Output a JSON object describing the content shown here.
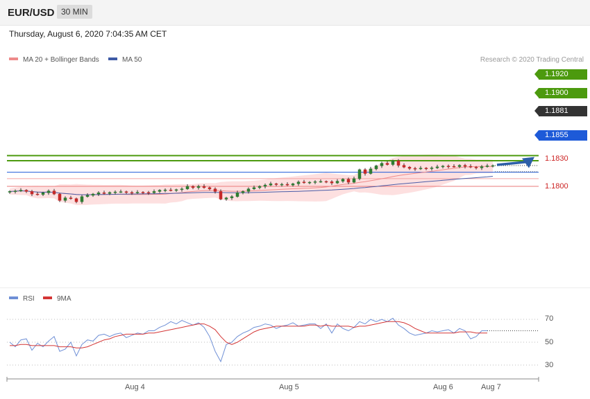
{
  "header": {
    "symbol": "EUR/USD",
    "timeframe": "30 MIN"
  },
  "date_line": "Thursday, August 6, 2020 7:04:35 AM CET",
  "legend": {
    "ma20": "MA 20 + Bollinger Bands",
    "ma50": "MA 50",
    "rsi": "RSI",
    "rsi_ma": "9MA"
  },
  "copyright": "Research © 2020 Trading Central",
  "colors": {
    "green": "#4c9a0e",
    "blue": "#1d5ad8",
    "red_line": "#e77b7b",
    "dark": "#333333",
    "candle_up": "#2e7d32",
    "candle_down": "#c62828",
    "band": "#fde0e0",
    "ma20": "#ee8a8a",
    "ma50": "#4a5da8",
    "rsi": "#6e8fd6",
    "rsi_ma": "#d43535",
    "arrow": "#2d5fa8"
  },
  "chart_data": [
    {
      "type": "candlestick",
      "ylim": [
        1.1747,
        1.1932
      ],
      "x_ticks": [
        "Aug 4",
        "Aug 5",
        "Aug 6",
        "Aug 7"
      ],
      "levels": [
        {
          "value": 1.192,
          "label": "1.1920",
          "style": "resistance"
        },
        {
          "value": 1.19,
          "label": "1.1900",
          "style": "resistance"
        },
        {
          "value": 1.1881,
          "label": "1.1881",
          "style": "last"
        },
        {
          "value": 1.1855,
          "label": "1.1855",
          "style": "support"
        },
        {
          "value": 1.183,
          "label": "1.1830",
          "style": "minor"
        },
        {
          "value": 1.18,
          "label": "1.1800",
          "style": "minor"
        }
      ],
      "closes": [
        1.178,
        1.1782,
        1.1785,
        1.178,
        1.177,
        1.1768,
        1.1775,
        1.1782,
        1.177,
        1.1745,
        1.1755,
        1.1752,
        1.174,
        1.176,
        1.1765,
        1.177,
        1.1775,
        1.1772,
        1.1776,
        1.1778,
        1.1779,
        1.1776,
        1.1775,
        1.1777,
        1.1776,
        1.1775,
        1.178,
        1.1785,
        1.1786,
        1.1784,
        1.1787,
        1.179,
        1.18,
        1.1795,
        1.18,
        1.1795,
        1.179,
        1.178,
        1.175,
        1.1755,
        1.176,
        1.1775,
        1.178,
        1.179,
        1.1795,
        1.18,
        1.1805,
        1.181,
        1.1807,
        1.1808,
        1.1805,
        1.181,
        1.1817,
        1.1814,
        1.1816,
        1.1818,
        1.1819,
        1.1818,
        1.1813,
        1.182,
        1.1828,
        1.1816,
        1.183,
        1.1865,
        1.185,
        1.1868,
        1.188,
        1.189,
        1.1885,
        1.19,
        1.1882,
        1.1875,
        1.187,
        1.1868,
        1.1871,
        1.1869,
        1.1872,
        1.1876,
        1.1879,
        1.1878,
        1.1877,
        1.1882,
        1.1878,
        1.1875,
        1.1872,
        1.1877,
        1.188,
        1.1881
      ],
      "projection": {
        "from": 1.1881,
        "to": 1.192
      }
    },
    {
      "type": "line",
      "title": "RSI",
      "ylim": [
        20,
        80
      ],
      "y_ticks": [
        30,
        50,
        70
      ],
      "rsi": [
        50,
        46,
        52,
        53,
        43,
        49,
        46,
        51,
        55,
        42,
        44,
        50,
        38,
        48,
        52,
        51,
        56,
        57,
        55,
        57,
        58,
        54,
        56,
        58,
        57,
        60,
        60,
        63,
        65,
        68,
        66,
        69,
        67,
        65,
        67,
        63,
        55,
        42,
        33,
        48,
        50,
        55,
        58,
        60,
        63,
        64,
        66,
        65,
        62,
        64,
        65,
        67,
        64,
        65,
        66,
        66,
        62,
        66,
        58,
        66,
        62,
        60,
        63,
        68,
        66,
        70,
        68,
        70,
        68,
        71,
        65,
        62,
        58,
        56,
        57,
        58,
        60,
        59,
        60,
        61,
        58,
        62,
        60,
        53,
        55,
        60,
        60
      ],
      "rsi_ma": [
        47,
        47,
        48,
        48,
        47,
        47,
        47,
        47,
        47,
        46,
        46,
        46,
        45,
        45,
        46,
        48,
        50,
        52,
        53,
        55,
        56,
        57,
        57,
        57,
        57,
        58,
        58,
        59,
        60,
        61,
        62,
        63,
        64,
        65,
        66,
        66,
        64,
        61,
        55,
        50,
        48,
        50,
        53,
        56,
        59,
        61,
        62,
        63,
        64,
        64,
        64,
        64,
        64,
        64,
        65,
        65,
        64,
        65,
        64,
        64,
        64,
        64,
        63,
        64,
        64,
        65,
        66,
        67,
        68,
        68,
        68,
        67,
        65,
        62,
        60,
        58,
        58,
        58,
        58,
        58,
        58,
        59,
        59,
        59,
        58,
        58,
        58
      ]
    }
  ]
}
